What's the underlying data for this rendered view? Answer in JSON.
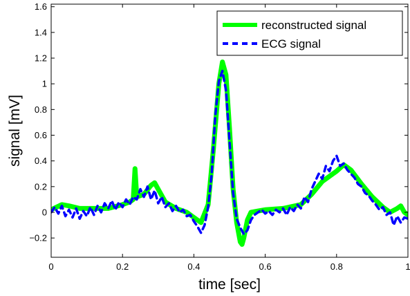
{
  "chart_data": {
    "type": "line",
    "title": "",
    "xlabel": "time [sec]",
    "ylabel": "signal [mV]",
    "xlim": [
      0,
      1
    ],
    "ylim": [
      -0.35,
      1.62
    ],
    "x_ticks": [
      0,
      0.2,
      0.4,
      0.6,
      0.8,
      1
    ],
    "x_tick_labels": [
      "0",
      "0.2",
      "0.4",
      "0.6",
      "0.8",
      "1"
    ],
    "y_ticks": [
      -0.2,
      0,
      0.2,
      0.4,
      0.6,
      0.8,
      1,
      1.2,
      1.4,
      1.6
    ],
    "y_tick_labels": [
      "−0.2",
      "0",
      "0.2",
      "0.4",
      "0.6",
      "0.8",
      "1",
      "1.2",
      "1.4",
      "1.6"
    ],
    "grid": false,
    "legend_position": "top-right",
    "series": [
      {
        "name": "reconstructed signal",
        "color": "#00ff00",
        "style": "solid-thick",
        "x": [
          0,
          0.03,
          0.05,
          0.08,
          0.12,
          0.16,
          0.2,
          0.22,
          0.23,
          0.235,
          0.24,
          0.26,
          0.28,
          0.29,
          0.3,
          0.32,
          0.35,
          0.38,
          0.4,
          0.42,
          0.44,
          0.455,
          0.47,
          0.48,
          0.49,
          0.5,
          0.51,
          0.52,
          0.53,
          0.535,
          0.54,
          0.55,
          0.56,
          0.58,
          0.6,
          0.65,
          0.7,
          0.73,
          0.76,
          0.8,
          0.82,
          0.84,
          0.87,
          0.9,
          0.93,
          0.95,
          0.97,
          0.98,
          0.99,
          1.0
        ],
        "y": [
          0.02,
          0.06,
          0.05,
          0.03,
          0.03,
          0.03,
          0.06,
          0.08,
          0.1,
          0.34,
          0.12,
          0.14,
          0.21,
          0.23,
          0.18,
          0.08,
          0.03,
          0.0,
          -0.04,
          -0.08,
          0.06,
          0.5,
          1.0,
          1.17,
          1.07,
          0.65,
          0.18,
          -0.08,
          -0.23,
          -0.25,
          -0.2,
          -0.06,
          0.0,
          0.01,
          0.02,
          0.03,
          0.06,
          0.14,
          0.24,
          0.32,
          0.37,
          0.33,
          0.22,
          0.12,
          0.04,
          0.0,
          0.03,
          0.05,
          0.0,
          -0.02
        ]
      },
      {
        "name": "ECG signal",
        "color": "#0000ff",
        "style": "dashed",
        "x": [
          0,
          0.01,
          0.02,
          0.03,
          0.04,
          0.05,
          0.06,
          0.07,
          0.08,
          0.09,
          0.1,
          0.11,
          0.12,
          0.13,
          0.14,
          0.15,
          0.16,
          0.17,
          0.18,
          0.19,
          0.2,
          0.21,
          0.22,
          0.23,
          0.24,
          0.25,
          0.26,
          0.27,
          0.28,
          0.29,
          0.3,
          0.31,
          0.32,
          0.33,
          0.34,
          0.35,
          0.36,
          0.37,
          0.38,
          0.39,
          0.4,
          0.41,
          0.42,
          0.43,
          0.44,
          0.45,
          0.46,
          0.47,
          0.48,
          0.49,
          0.5,
          0.51,
          0.52,
          0.53,
          0.54,
          0.55,
          0.56,
          0.57,
          0.58,
          0.59,
          0.6,
          0.61,
          0.62,
          0.63,
          0.64,
          0.65,
          0.66,
          0.67,
          0.68,
          0.69,
          0.7,
          0.71,
          0.72,
          0.73,
          0.74,
          0.75,
          0.76,
          0.77,
          0.78,
          0.79,
          0.8,
          0.81,
          0.82,
          0.83,
          0.84,
          0.85,
          0.86,
          0.87,
          0.88,
          0.89,
          0.9,
          0.91,
          0.92,
          0.93,
          0.94,
          0.95,
          0.96,
          0.97,
          0.98,
          0.99,
          1.0
        ],
        "y": [
          0.0,
          0.04,
          -0.01,
          0.05,
          -0.03,
          0.02,
          -0.04,
          0.03,
          -0.05,
          0.01,
          -0.03,
          0.04,
          -0.02,
          0.05,
          0.0,
          0.07,
          0.03,
          0.09,
          0.02,
          0.08,
          0.04,
          0.1,
          0.06,
          0.12,
          0.1,
          0.18,
          0.12,
          0.2,
          0.1,
          0.17,
          0.07,
          0.12,
          0.04,
          0.07,
          0.01,
          0.05,
          0.0,
          0.02,
          -0.03,
          -0.02,
          -0.07,
          -0.11,
          -0.16,
          -0.1,
          0.04,
          0.3,
          0.75,
          1.02,
          1.1,
          0.95,
          0.55,
          0.15,
          -0.05,
          -0.12,
          -0.17,
          -0.14,
          -0.06,
          -0.02,
          0.0,
          0.02,
          -0.01,
          0.01,
          -0.02,
          0.02,
          0.0,
          0.03,
          -0.02,
          0.04,
          0.01,
          0.06,
          0.03,
          0.12,
          0.08,
          0.18,
          0.24,
          0.3,
          0.26,
          0.36,
          0.32,
          0.4,
          0.44,
          0.36,
          0.38,
          0.33,
          0.3,
          0.27,
          0.22,
          0.2,
          0.15,
          0.13,
          0.09,
          0.06,
          0.02,
          0.04,
          -0.02,
          0.0,
          -0.1,
          -0.03,
          -0.08,
          -0.04,
          -0.05
        ]
      }
    ]
  }
}
